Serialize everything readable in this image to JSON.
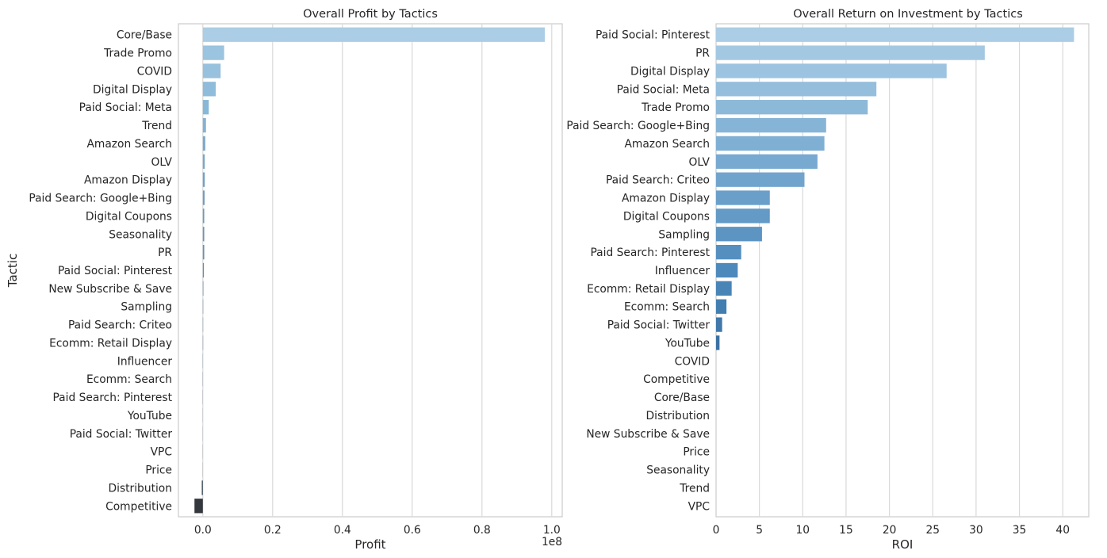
{
  "chart_data": [
    {
      "type": "bar",
      "orientation": "horizontal",
      "title": "Overall Profit by Tactics",
      "xlabel": "Profit",
      "ylabel": "Tactic",
      "x_offset_label": "1e8",
      "xlim": [
        -0.07,
        1.03
      ],
      "xticks": [
        0.0,
        0.2,
        0.4,
        0.6,
        0.8,
        1.0
      ],
      "xtick_labels": [
        "0.0",
        "0.2",
        "0.4",
        "0.6",
        "0.8",
        "1.0"
      ],
      "grid": "vertical",
      "palette": "Blues_d",
      "categories": [
        "Core/Base",
        "Trade Promo",
        "COVID",
        "Digital Display",
        "Paid Social: Meta",
        "Trend",
        "Amazon Search",
        "OLV",
        "Amazon Display",
        "Paid Search: Google+Bing",
        "Digital Coupons",
        "Seasonality",
        "PR",
        "Paid Social: Pinterest",
        "New Subscribe & Save",
        "Sampling",
        "Paid Search: Criteo",
        "Ecomm: Retail Display",
        "Influencer",
        "Ecomm: Search",
        "Paid Search: Pinterest",
        "YouTube",
        "Paid Social: Twitter",
        "VPC",
        "Price",
        "Distribution",
        "Competitive"
      ],
      "values": [
        0.98,
        0.061,
        0.051,
        0.037,
        0.017,
        0.009,
        0.007,
        0.0055,
        0.0055,
        0.005,
        0.004,
        0.004,
        0.004,
        0.003,
        0.0015,
        0.001,
        0.0008,
        0.0008,
        0.0005,
        0.0005,
        0.0004,
        0.0003,
        0.0003,
        0.0003,
        -0.0003,
        -0.003,
        -0.024
      ],
      "colors": [
        "#abcde5",
        "#9ac4df",
        "#97c1dd",
        "#8fbcda",
        "#88b8d7",
        "#85b2d2",
        "#7ea9ca",
        "#7ba7c8",
        "#76a0c2",
        "#749dbf",
        "#6f99bb",
        "#6b94b5",
        "#6990b1",
        "#658cad",
        "#6186a6",
        "#5e82a2",
        "#5a7c9b",
        "#567795",
        "#52728f",
        "#4f6c88",
        "#4a6683",
        "#47617c",
        "#435b74",
        "#3f546c",
        "#3b4d63",
        "#394654",
        "#34383e"
      ]
    },
    {
      "type": "bar",
      "orientation": "horizontal",
      "title": "Overall Return on Investment by Tactics",
      "xlabel": "ROI",
      "ylabel": "",
      "xlim": [
        0,
        43
      ],
      "xticks": [
        0,
        5,
        10,
        15,
        20,
        25,
        30,
        35,
        40
      ],
      "xtick_labels": [
        "0",
        "5",
        "10",
        "15",
        "20",
        "25",
        "30",
        "35",
        "40"
      ],
      "grid": "vertical",
      "palette": "Blues_d",
      "categories": [
        "Paid Social: Pinterest",
        "PR",
        "Digital Display",
        "Paid Social: Meta",
        "Trade Promo",
        "Paid Search: Google+Bing",
        "Amazon Search",
        "OLV",
        "Paid Search: Criteo",
        "Amazon Display",
        "Digital Coupons",
        "Sampling",
        "Paid Search: Pinterest",
        "Influencer",
        "Ecomm: Retail Display",
        "Ecomm: Search",
        "Paid Social: Twitter",
        "YouTube",
        "COVID",
        "Competitive",
        "Core/Base",
        "Distribution",
        "New Subscribe & Save",
        "Price",
        "Seasonality",
        "Trend",
        "VPC"
      ],
      "values": [
        41.3,
        31.0,
        26.6,
        18.5,
        17.5,
        12.7,
        12.5,
        11.7,
        10.2,
        6.2,
        6.2,
        5.3,
        2.9,
        2.5,
        1.8,
        1.2,
        0.7,
        0.4,
        0,
        0,
        0,
        0,
        0,
        0,
        0,
        0,
        0
      ],
      "colors": [
        "#abcde5",
        "#a3c8e2",
        "#9cc3df",
        "#95bedc",
        "#8db9d9",
        "#86b4d6",
        "#7fafd3",
        "#78a9d0",
        "#71a4cd",
        "#6a9fca",
        "#639ac6",
        "#5c94c2",
        "#558fbf",
        "#4e89bb",
        "#4884b6",
        "#437eb0",
        "#3f78a9",
        "#3b72a2",
        "#386c9a",
        "#356593",
        "#325f8b",
        "#2f5983",
        "#2c537b",
        "#2a4d74",
        "#27476c",
        "#244164",
        "#213b5c"
      ]
    }
  ]
}
